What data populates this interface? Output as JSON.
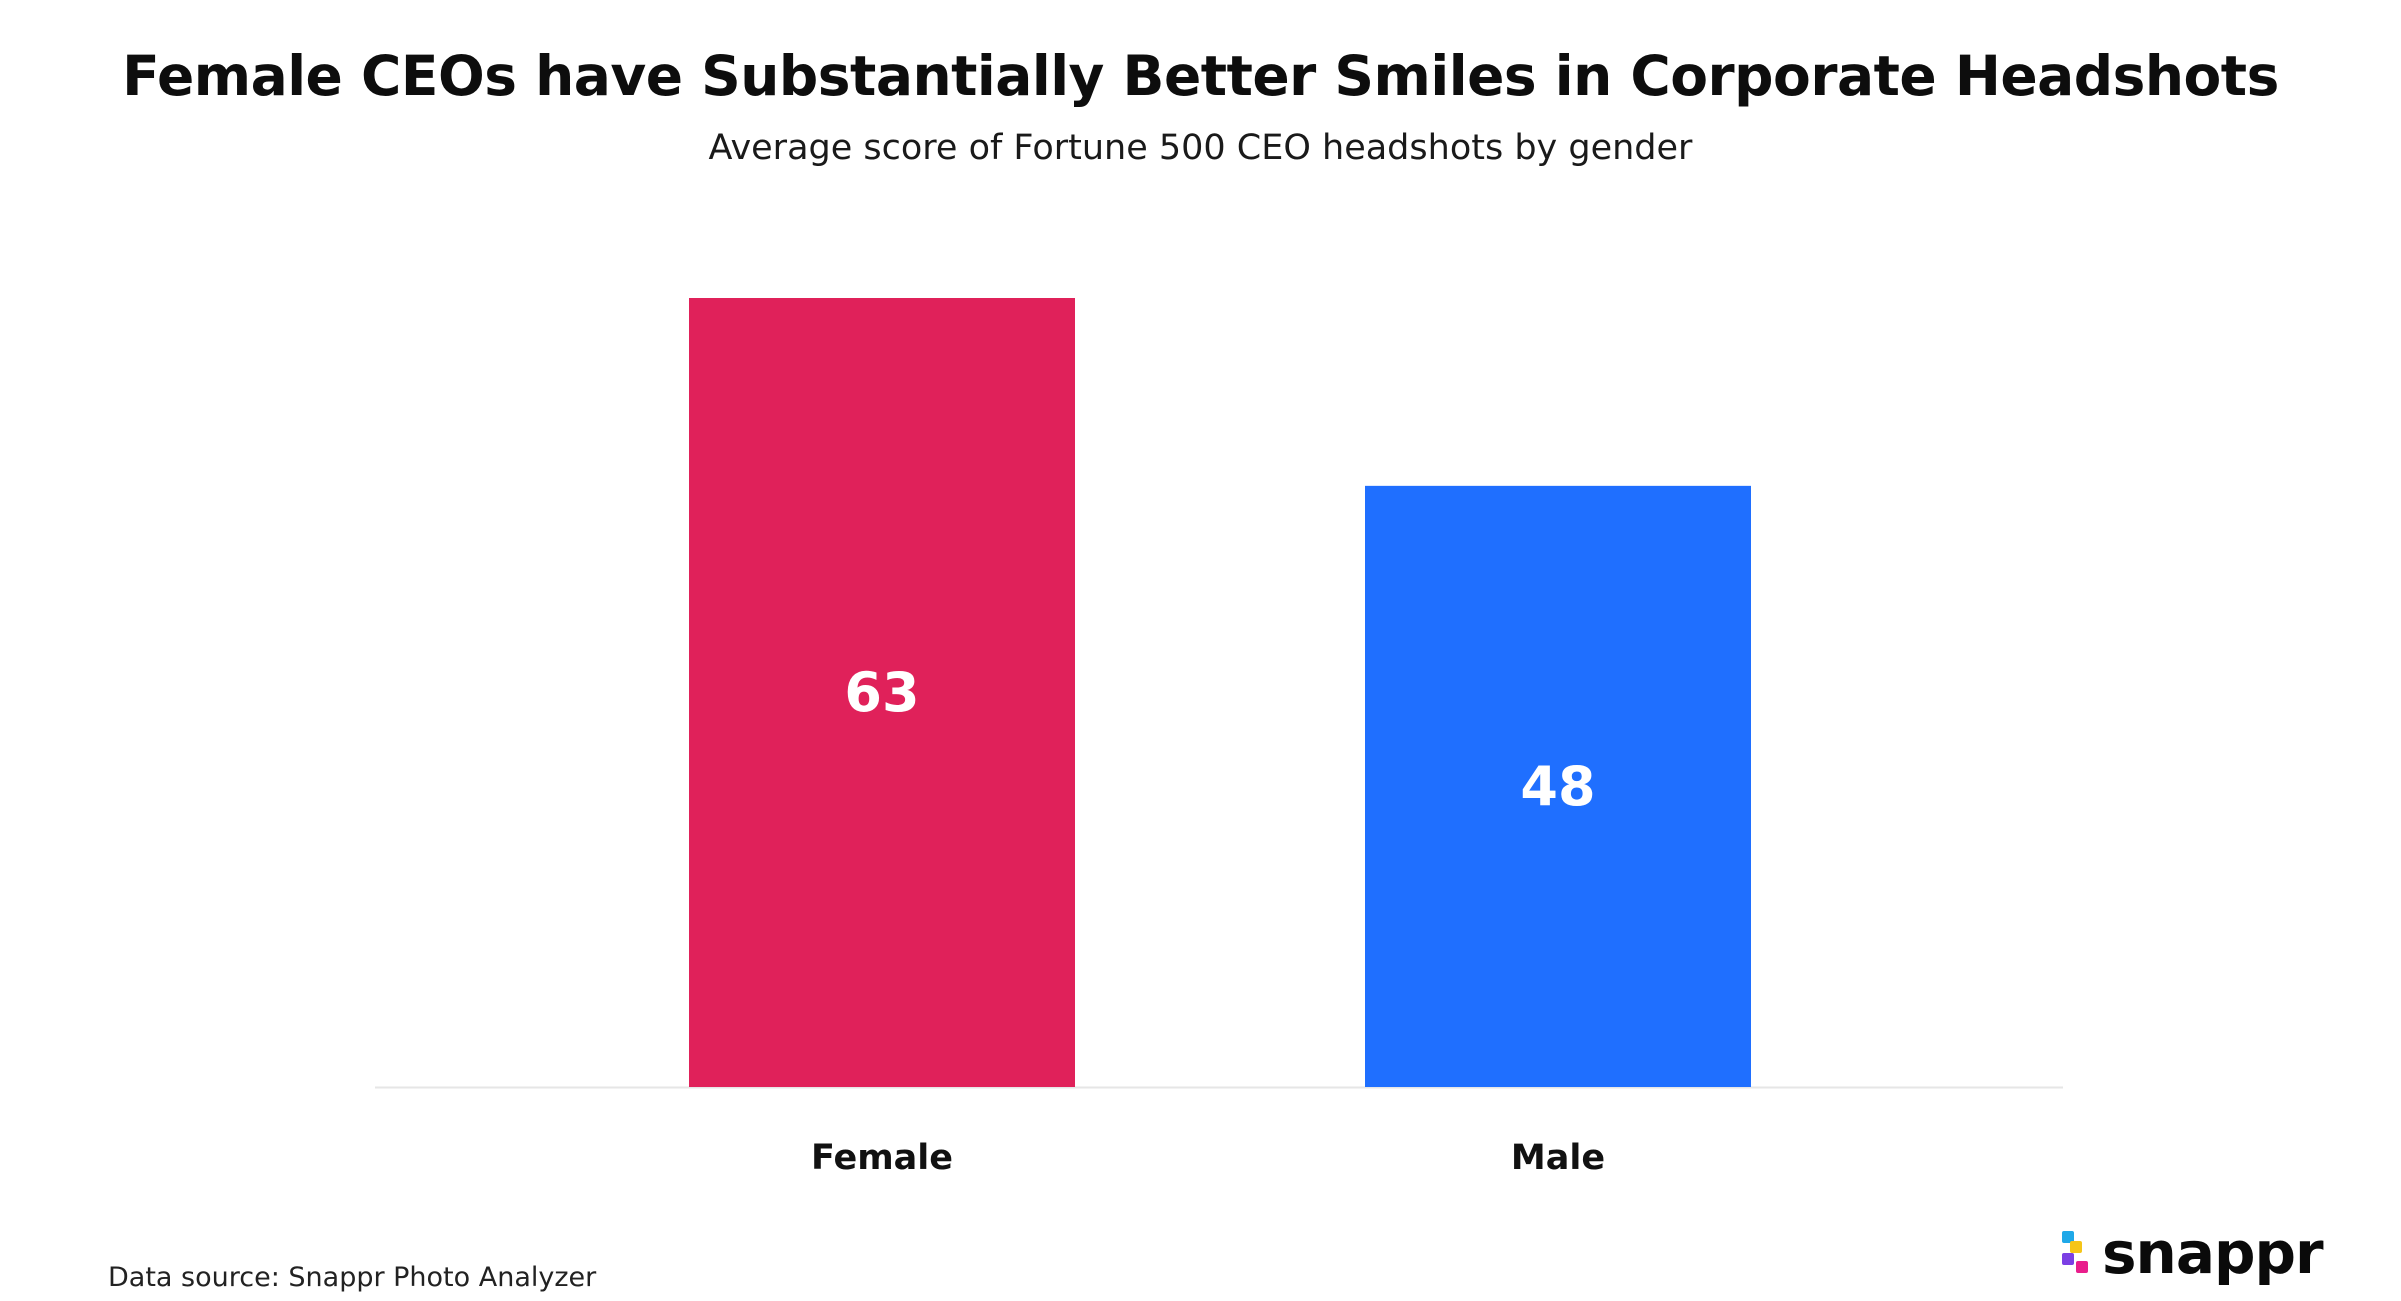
{
  "header": {
    "title": "Female CEOs have Substantially Better Smiles in Corporate Headshots",
    "subtitle": "Average score of Fortune 500 CEO headshots by gender"
  },
  "footer": {
    "source": "Data source: Snappr Photo Analyzer",
    "brand": "snappr"
  },
  "colors": {
    "female": "#E0215A",
    "male": "#1F6FFF",
    "baseline": "#E6E6E6",
    "logo_blue": "#1FA8E8",
    "logo_yellow": "#F5C518",
    "logo_pink": "#E91E8C",
    "logo_purple": "#7B3FE4"
  },
  "chart_data": {
    "type": "bar",
    "title": "Female CEOs have Substantially Better Smiles in Corporate Headshots",
    "subtitle": "Average score of Fortune 500 CEO headshots by gender",
    "categories": [
      "Female",
      "Male"
    ],
    "values": [
      63,
      48
    ],
    "value_labels": [
      "63",
      "48"
    ],
    "colors": [
      "#E0215A",
      "#1F6FFF"
    ],
    "xlabel": "",
    "ylabel": "",
    "ylim": [
      0,
      63
    ],
    "grid": false,
    "legend": "none",
    "source": "Data source: Snappr Photo Analyzer"
  }
}
